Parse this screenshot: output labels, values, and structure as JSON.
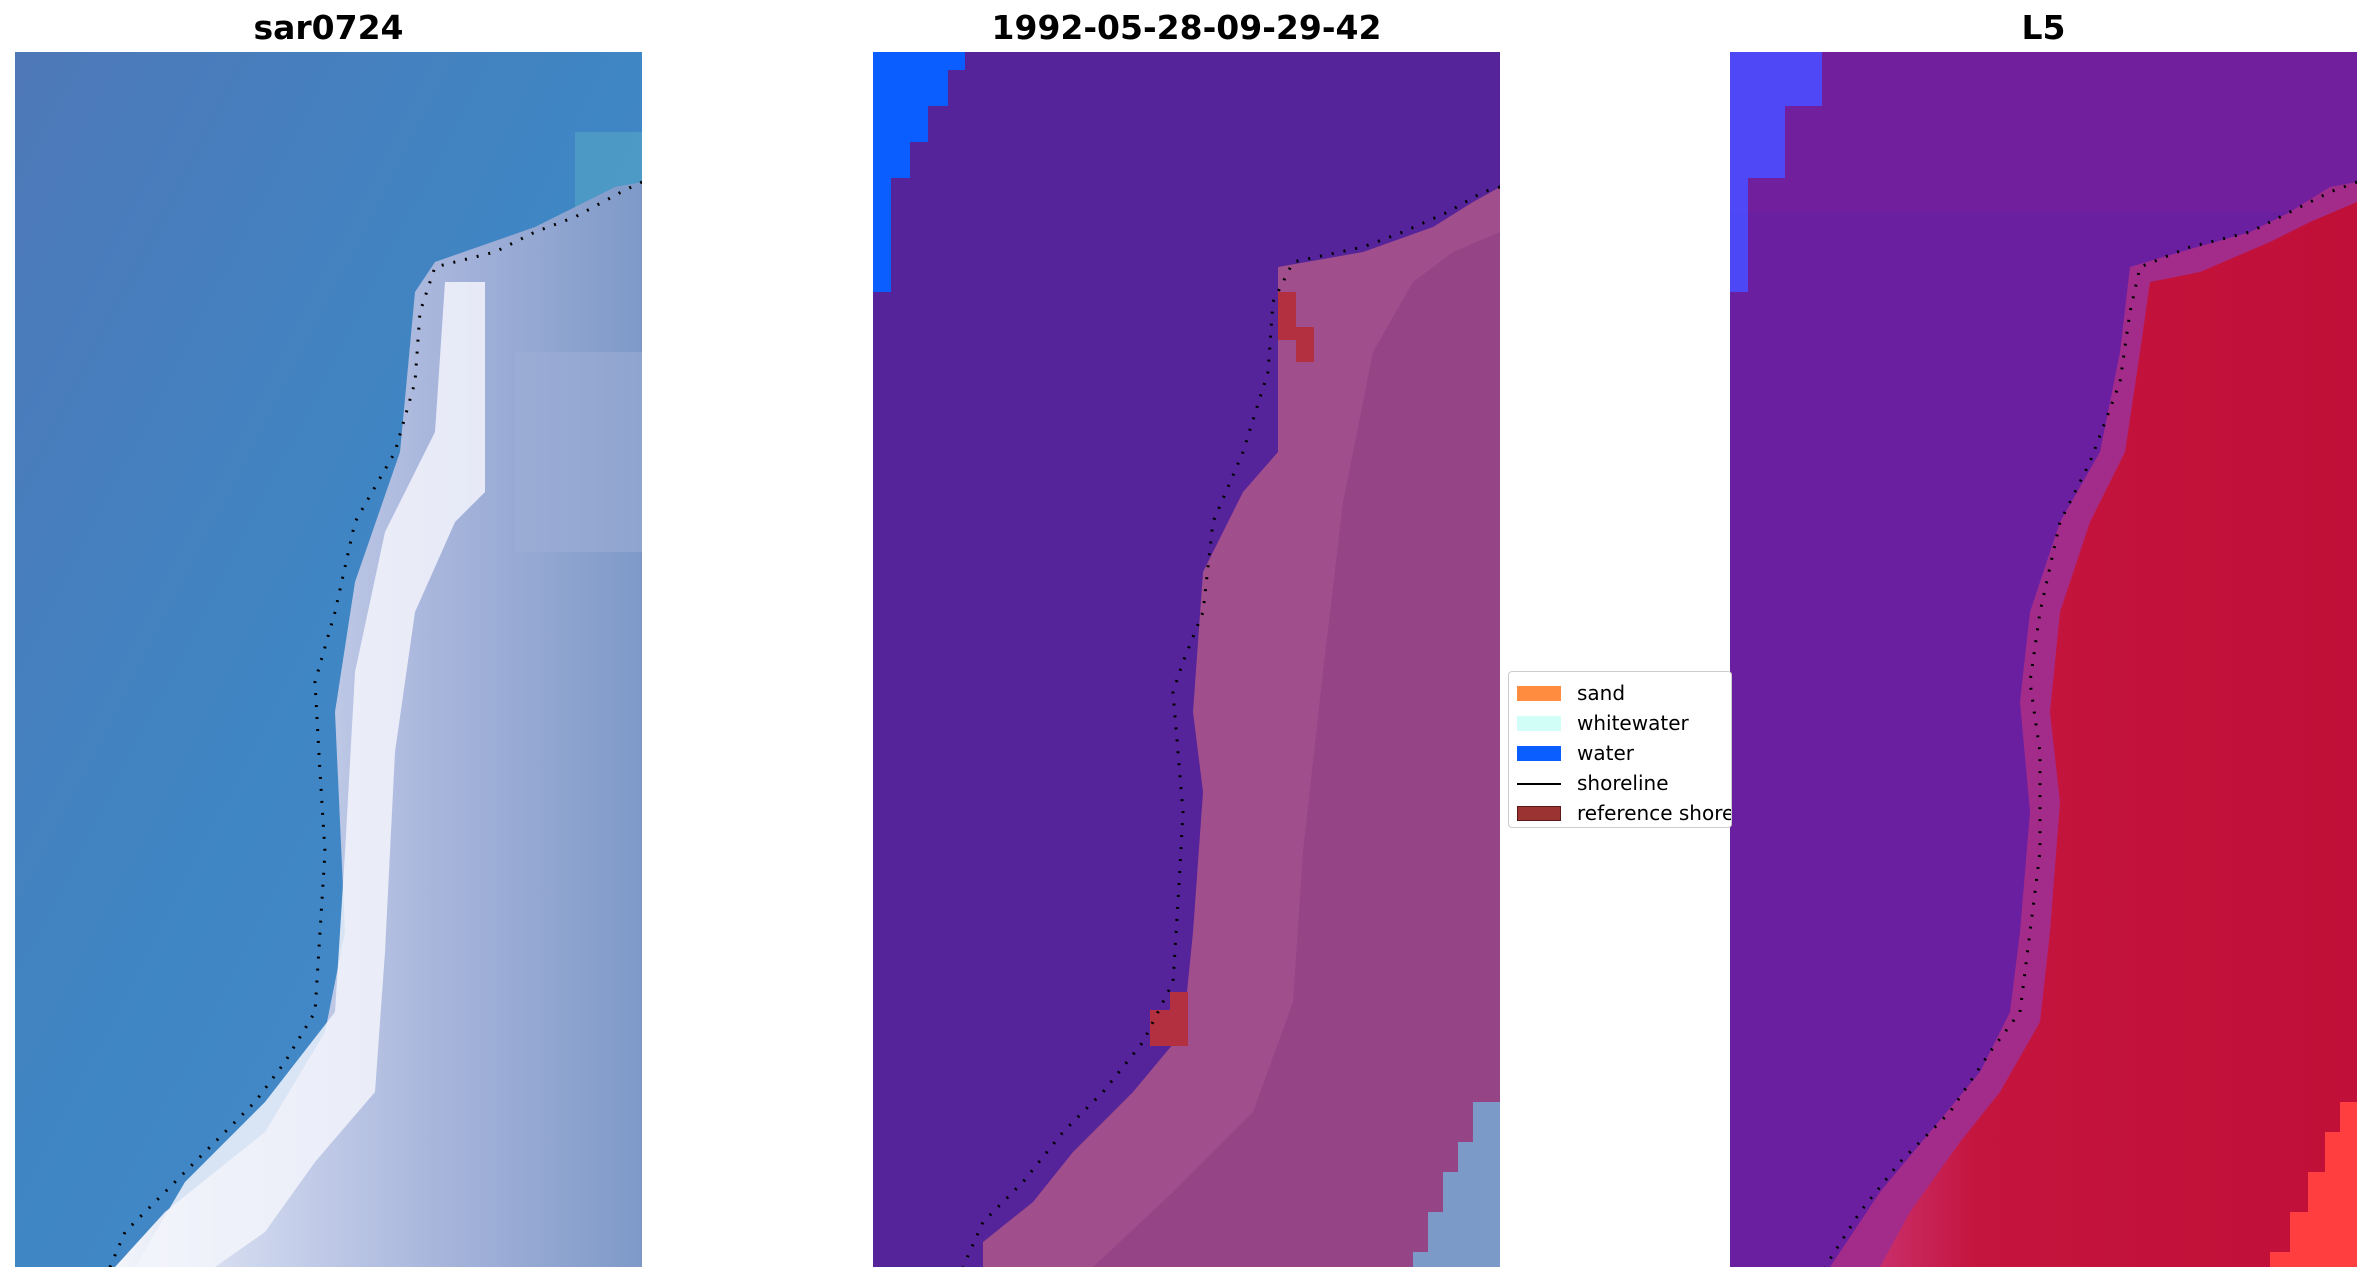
{
  "panels": [
    {
      "title": "sar0724"
    },
    {
      "title": "1992-05-28-09-29-42"
    },
    {
      "title": "L5"
    }
  ],
  "legend": {
    "items": [
      {
        "label": "sand",
        "color": "#ff8c3f",
        "type": "patch"
      },
      {
        "label": "whitewater",
        "color": "#d1fff8",
        "type": "patch"
      },
      {
        "label": "water",
        "color": "#0a5eff",
        "type": "patch"
      },
      {
        "label": "shoreline",
        "color": "#000000",
        "type": "line"
      },
      {
        "label": "reference shoreline",
        "color": "#9b3333",
        "type": "patch"
      }
    ]
  },
  "colors": {
    "rgb_water": "#3f7dc0",
    "rgb_land": "#b7c3e6",
    "class_background": "#55239a",
    "class_land_overlay": "#a04e8c",
    "class_reference_shoreline": "#b33040",
    "false_color_water": "#6a1fa0",
    "false_color_land": "#c0133a"
  }
}
